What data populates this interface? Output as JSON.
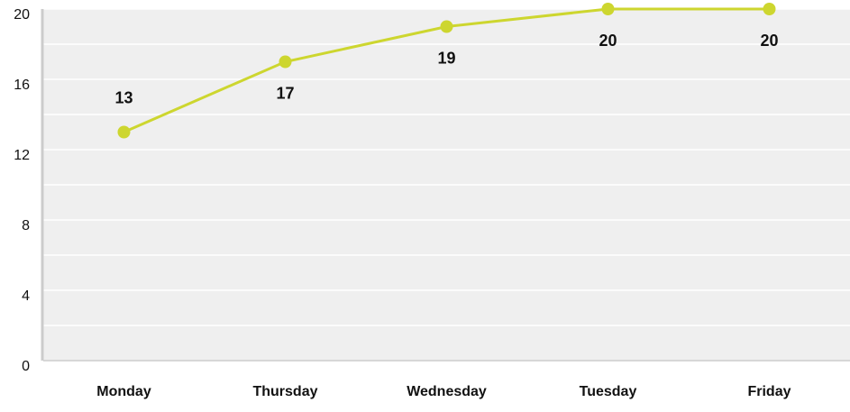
{
  "chart_data": {
    "type": "line",
    "categories": [
      "Monday",
      "Thursday",
      "Wednesday",
      "Tuesday",
      "Friday"
    ],
    "values": [
      13,
      17,
      19,
      20,
      20
    ],
    "color": "#cdd62f",
    "ylim": [
      0,
      20
    ],
    "yticks": [
      0,
      4,
      8,
      12,
      16,
      20
    ],
    "grid": true
  }
}
